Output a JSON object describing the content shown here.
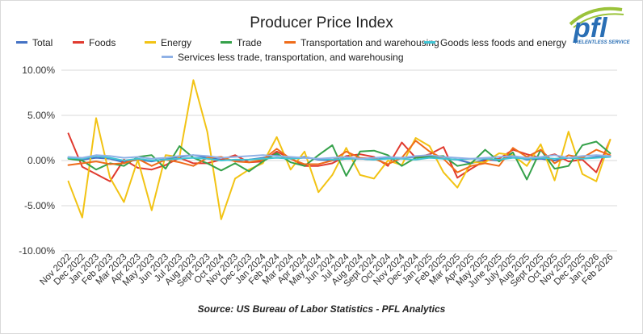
{
  "logo": {
    "text": "pfl",
    "tagline": "RELENTLESS SERVICE"
  },
  "chart_data": {
    "type": "line",
    "title": "Producer Price Index",
    "source": "Source: US Bureau of Labor Statistics - PFL Analytics",
    "xlabel": "",
    "ylabel": "",
    "ylim": [
      -10,
      10
    ],
    "yticks": [
      -10,
      -5,
      0,
      5,
      10
    ],
    "ytick_labels": [
      "-10.00%",
      "-5.00%",
      "0.00%",
      "5.00%",
      "10.00%"
    ],
    "grid": "horizontal",
    "legend_position": "top",
    "categories": [
      "Nov 2022",
      "Dec 2022",
      "Jan 2023",
      "Feb 2023",
      "Mar 2023",
      "Apr 2023",
      "May 2023",
      "Jun 2023",
      "Jul 2023",
      "Aug 2023",
      "Sept 2023",
      "Oct 2024",
      "Nov 2023",
      "Dec 2023",
      "Jan 2024",
      "Feb 2024",
      "Mar 2024",
      "Apr 2024",
      "May 2024",
      "Jun 2024",
      "Jul 2024",
      "Aug 2024",
      "Sept 2024",
      "Oct 2024",
      "Nov 2024",
      "Dec 2024",
      "Jan 2025",
      "Feb 2025",
      "Mar 2025",
      "Apr 2025",
      "May 2025",
      "June 2025",
      "July 2025",
      "Aug 2025",
      "Sept 2025",
      "Oct 2025",
      "Nov 2025",
      "Dec 2025",
      "Jan 2026",
      "Feb 2026"
    ],
    "series": [
      {
        "name": "Total",
        "color": "#4472c4",
        "values": [
          0.3,
          0.1,
          0.3,
          0.2,
          -0.2,
          0.1,
          -0.1,
          0.2,
          0.4,
          0.6,
          0.3,
          0.1,
          0.0,
          0.1,
          0.3,
          0.6,
          0.2,
          0.4,
          0.1,
          0.0,
          0.2,
          0.2,
          0.1,
          0.3,
          0.3,
          0.4,
          0.5,
          0.2,
          0.1,
          -0.3,
          0.1,
          0.0,
          0.5,
          0.1,
          0.2,
          0.0,
          0.3,
          0.2,
          0.4,
          0.5
        ]
      },
      {
        "name": "Foods",
        "color": "#e03a2f",
        "values": [
          3.0,
          -0.7,
          -1.5,
          -2.3,
          0.1,
          -0.8,
          -1.0,
          -0.5,
          0.3,
          -0.3,
          -0.3,
          0.1,
          0.6,
          -0.2,
          -0.1,
          1.0,
          0.2,
          -0.6,
          -0.6,
          -0.3,
          0.5,
          0.7,
          0.4,
          -0.6,
          2.0,
          0.3,
          0.7,
          1.5,
          -1.9,
          -0.9,
          0.0,
          0.2,
          1.2,
          0.7,
          0.3,
          0.7,
          -0.1,
          0.1,
          -1.3,
          2.3
        ]
      },
      {
        "name": "Energy",
        "color": "#f2c314",
        "values": [
          -2.3,
          -6.3,
          4.7,
          -1.9,
          -4.6,
          0.1,
          -5.5,
          0.6,
          0.4,
          8.9,
          3.2,
          -6.5,
          -2.0,
          -1.0,
          -0.3,
          2.6,
          -1.0,
          1.0,
          -3.5,
          -1.6,
          1.4,
          -1.6,
          -2.0,
          0.0,
          -0.5,
          2.5,
          1.6,
          -1.3,
          -3.0,
          -0.2,
          -0.2,
          0.8,
          0.6,
          -0.6,
          1.8,
          -2.2,
          3.2,
          -1.5,
          -2.3,
          2.3
        ]
      },
      {
        "name": "Trade",
        "color": "#35a14a",
        "values": [
          0.2,
          0.0,
          -1.0,
          -0.3,
          -0.6,
          0.4,
          0.6,
          -0.9,
          1.6,
          0.3,
          -0.3,
          -1.1,
          -0.3,
          -1.2,
          -0.1,
          0.8,
          -0.2,
          -0.6,
          0.6,
          1.7,
          -1.7,
          1.0,
          1.1,
          0.6,
          -0.6,
          0.3,
          0.4,
          0.5,
          -0.6,
          -0.3,
          1.2,
          -0.1,
          0.9,
          -2.1,
          1.2,
          -0.9,
          -0.6,
          1.7,
          2.1,
          0.8
        ]
      },
      {
        "name": "Transportation and warehousing",
        "color": "#ef6c1a",
        "values": [
          -0.5,
          -0.3,
          -0.1,
          -0.4,
          -0.3,
          0.2,
          -0.6,
          0.1,
          -0.2,
          -0.6,
          0.3,
          0.4,
          -0.1,
          -0.2,
          0.1,
          1.3,
          0.2,
          -0.4,
          -0.4,
          0.0,
          1.0,
          0.3,
          0.2,
          -0.4,
          0.3,
          2.2,
          1.0,
          0.2,
          -1.3,
          -0.6,
          -0.3,
          -0.6,
          1.4,
          0.4,
          1.2,
          -0.3,
          0.6,
          0.3,
          1.2,
          0.6
        ]
      },
      {
        "name": "Goods less foods and energy",
        "color": "#40c4d4",
        "values": [
          0.3,
          0.2,
          0.5,
          0.3,
          0.0,
          0.2,
          0.0,
          0.1,
          0.2,
          0.3,
          0.2,
          0.0,
          0.1,
          0.1,
          0.2,
          0.3,
          0.2,
          0.3,
          0.2,
          0.1,
          0.2,
          0.2,
          0.1,
          0.2,
          0.2,
          0.1,
          0.3,
          0.2,
          0.1,
          0.2,
          0.2,
          0.1,
          0.3,
          0.2,
          0.3,
          0.2,
          0.3,
          0.2,
          0.3,
          0.4
        ]
      },
      {
        "name": "Services less trade, transportation, and warehousing",
        "color": "#8fb1e6",
        "values": [
          0.4,
          0.3,
          0.6,
          0.5,
          0.3,
          0.4,
          0.2,
          0.3,
          0.5,
          0.6,
          0.5,
          0.3,
          0.4,
          0.5,
          0.6,
          0.5,
          0.4,
          0.3,
          0.2,
          0.3,
          0.4,
          0.2,
          0.3,
          0.4,
          0.3,
          0.5,
          0.6,
          0.4,
          0.3,
          0.2,
          0.3,
          0.4,
          0.5,
          0.3,
          0.4,
          0.6,
          0.3,
          0.5,
          0.6,
          0.5
        ]
      }
    ]
  }
}
